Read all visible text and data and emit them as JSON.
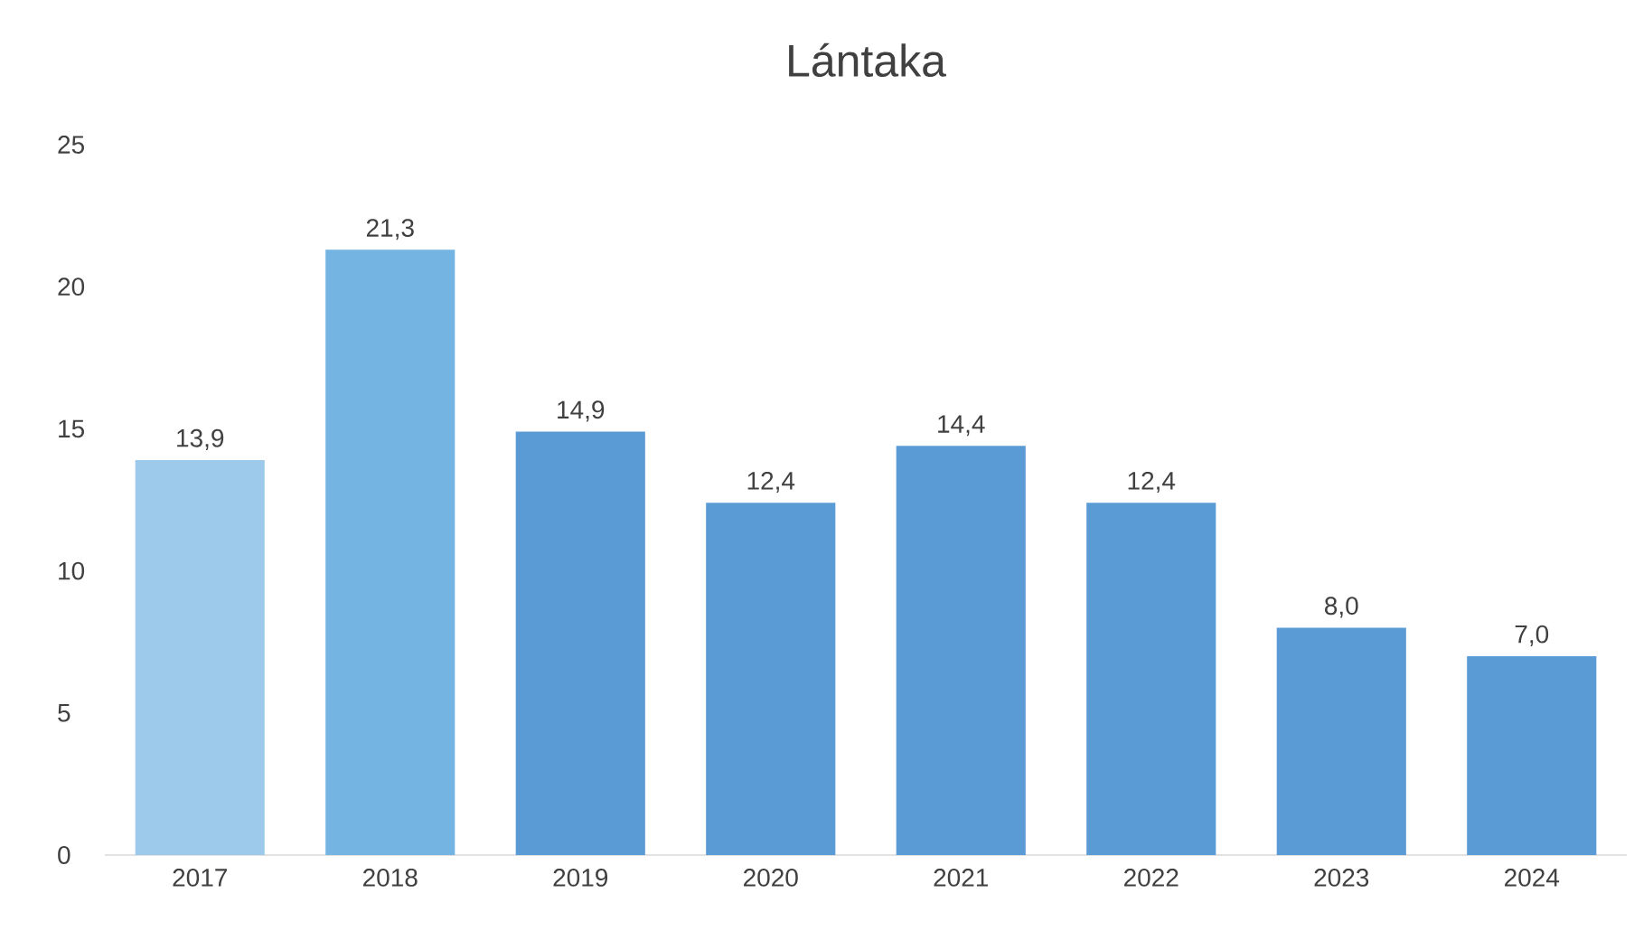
{
  "chart_data": {
    "type": "bar",
    "title": "Lántaka",
    "categories": [
      "2017",
      "2018",
      "2019",
      "2020",
      "2021",
      "2022",
      "2023",
      "2024"
    ],
    "values": [
      13.9,
      21.3,
      14.9,
      12.4,
      14.4,
      12.4,
      8.0,
      7.0
    ],
    "value_labels": [
      "13,9",
      "21,3",
      "14,9",
      "12,4",
      "14,4",
      "12,4",
      "8,0",
      "7,0"
    ],
    "colors": [
      "#9dcaea",
      "#74b4e2",
      "#5b9bd5",
      "#5b9bd5",
      "#5b9bd5",
      "#5b9bd5",
      "#5b9bd5",
      "#5b9bd5"
    ],
    "ylim": [
      0,
      25
    ],
    "yticks": [
      0,
      5,
      10,
      15,
      20,
      25
    ]
  }
}
